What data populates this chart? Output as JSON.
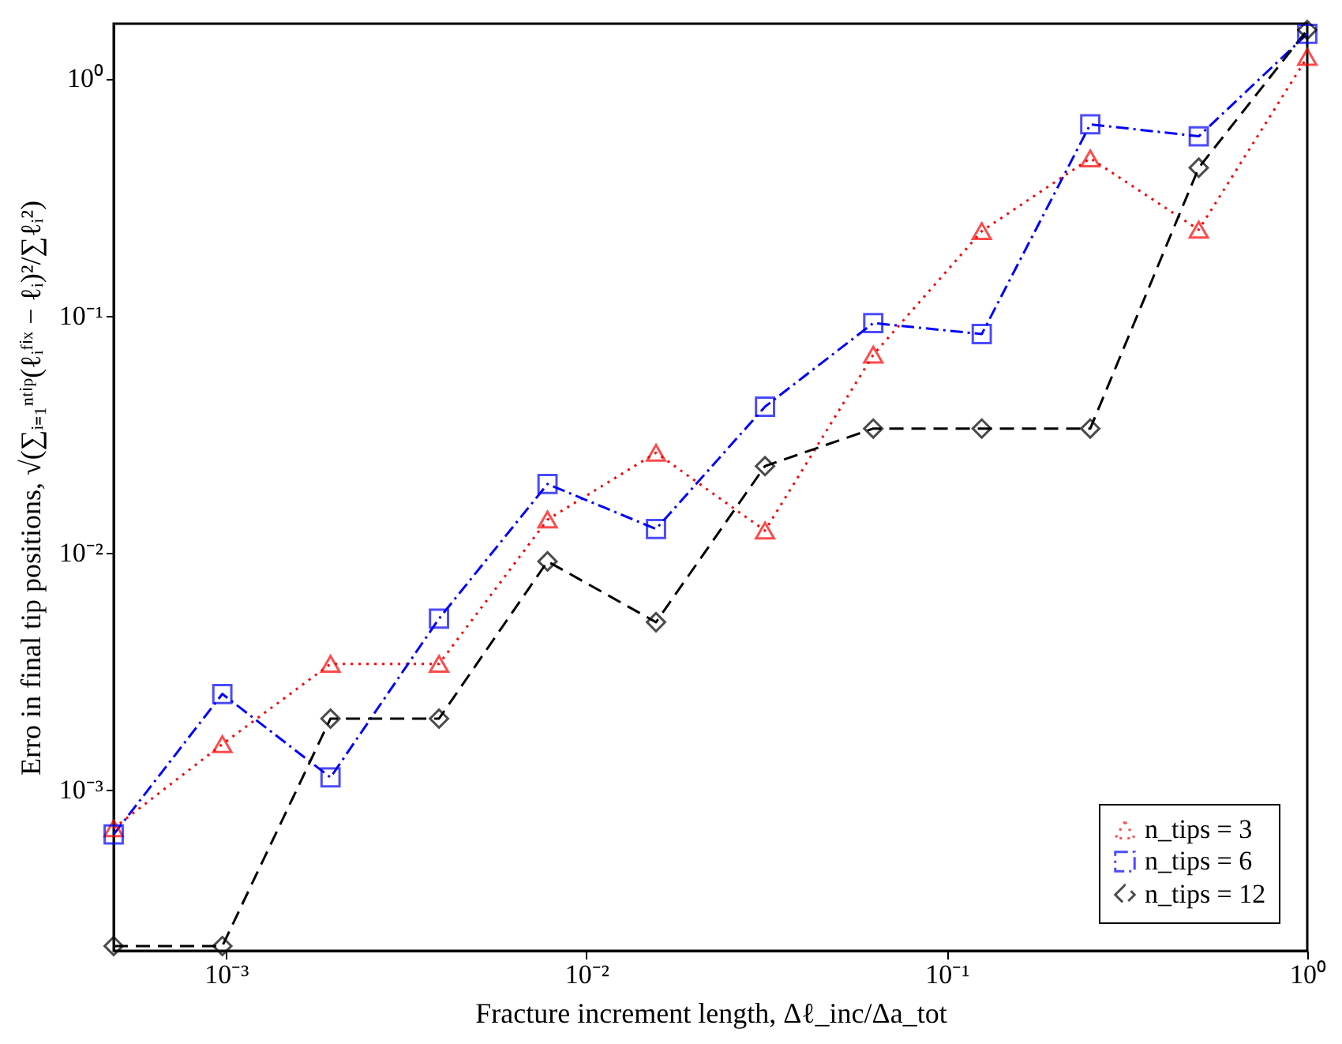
{
  "chart_data": {
    "type": "line",
    "xlabel": "Fracture increment length, Δℓ_inc/Δa_tot",
    "ylabel": "Erro in final tip positions, √(∑ᵢ₌₁ⁿᵗⁱᵖ(ℓᵢᶠⁱˣ − ℓᵢ)²/∑ℓᵢ²)",
    "x": [
      0.000488,
      0.000977,
      0.00195,
      0.0039,
      0.0078,
      0.0156,
      0.0313,
      0.0625,
      0.125,
      0.25,
      0.5,
      1
    ],
    "series": [
      {
        "name": "n_tips = 3",
        "color": "#ff0000",
        "marker": "triangle",
        "line_style": "dotted",
        "values": [
          0.00069,
          0.00156,
          0.0034,
          0.0034,
          0.0138,
          0.0264,
          0.0124,
          0.0684,
          0.227,
          0.46,
          0.23,
          1.23
        ]
      },
      {
        "name": "n_tips = 6",
        "color": "#0000ff",
        "marker": "square",
        "line_style": "dashdot",
        "values": [
          0.00065,
          0.00254,
          0.00113,
          0.00528,
          0.0195,
          0.0126,
          0.0413,
          0.093,
          0.0836,
          0.64,
          0.57,
          1.54
        ]
      },
      {
        "name": "n_tips = 12",
        "color": "#000000",
        "marker": "diamond",
        "line_style": "dashed",
        "values": [
          0.00022,
          0.00022,
          0.002,
          0.002,
          0.0092,
          0.0051,
          0.0232,
          0.0334,
          0.0334,
          0.0334,
          0.42,
          1.6
        ]
      }
    ],
    "log": "xy",
    "xlim": [
      0.000488,
      1
    ],
    "ylim": [
      0.00021,
      1.7
    ],
    "xticks": [
      {
        "value": 0.001,
        "label": "10⁻³"
      },
      {
        "value": 0.01,
        "label": "10⁻²"
      },
      {
        "value": 0.1,
        "label": "10⁻¹"
      },
      {
        "value": 1,
        "label": "10⁰"
      }
    ],
    "yticks": [
      {
        "value": 0.001,
        "label": "10⁻³"
      },
      {
        "value": 0.01,
        "label": "10⁻²"
      },
      {
        "value": 0.1,
        "label": "10⁻¹"
      },
      {
        "value": 1,
        "label": "10⁰"
      }
    ],
    "grid": false,
    "legend": "bottom right"
  }
}
